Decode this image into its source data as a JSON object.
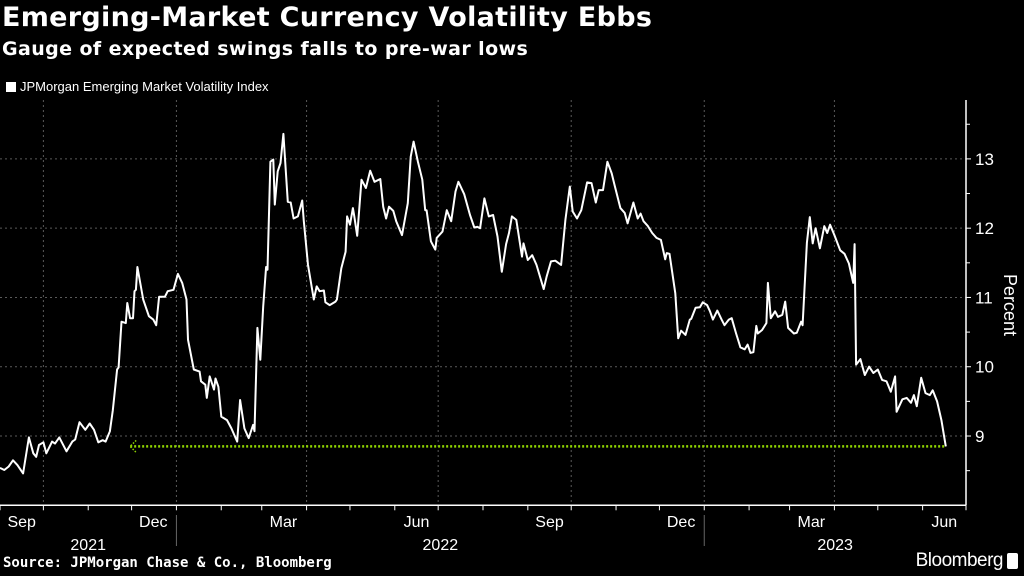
{
  "header": {
    "title": "Emerging-Market Currency Volatility Ebbs",
    "subtitle": "Gauge of expected swings falls to pre-war lows"
  },
  "footer": {
    "source": "Source: JPMorgan Chase & Co., Bloomberg",
    "logo": "Bloomberg"
  },
  "colors": {
    "background": "#000000",
    "series": "#ffffff",
    "reference_line": "#8fd400",
    "grid": "#555555"
  },
  "chart_data": {
    "type": "line",
    "title": "Emerging-Market Currency Volatility Ebbs",
    "subtitle": "Gauge of expected swings falls to pre-war lows",
    "ylabel": "Percent",
    "xlabel": "",
    "ylim": [
      8,
      13.85
    ],
    "xlim": [
      "2021-09-01",
      "2023-07-01"
    ],
    "grid": true,
    "legend": "top-left",
    "y_axis_side": "right",
    "y_ticks": [
      "9",
      "10",
      "11",
      "12",
      "13"
    ],
    "x_ticks": [
      {
        "label": "Sep",
        "date": "2021-09-16"
      },
      {
        "label": "Dec",
        "date": "2021-12-16"
      },
      {
        "label": "Mar",
        "date": "2022-03-16"
      },
      {
        "label": "Jun",
        "date": "2022-06-16"
      },
      {
        "label": "Sep",
        "date": "2022-09-16"
      },
      {
        "label": "Dec",
        "date": "2022-12-16"
      },
      {
        "label": "Mar",
        "date": "2023-03-16"
      },
      {
        "label": "Jun",
        "date": "2023-06-16"
      }
    ],
    "year_labels": [
      {
        "label": "2021",
        "from": "2021-09-01",
        "to": "2022-01-01"
      },
      {
        "label": "2022",
        "from": "2022-01-01",
        "to": "2023-01-01"
      },
      {
        "label": "2023",
        "from": "2023-01-01",
        "to": "2023-07-01"
      }
    ],
    "reference_line": {
      "value": 8.85,
      "from": "2021-11-30",
      "to": "2023-06-17",
      "style": "dotted-arrow-left"
    },
    "series": [
      {
        "name": "JPMorgan Emerging Market Volatility Index",
        "points": [
          [
            "2021-09-01",
            8.54
          ],
          [
            "2021-09-04",
            8.51
          ],
          [
            "2021-09-07",
            8.56
          ],
          [
            "2021-09-10",
            8.65
          ],
          [
            "2021-09-13",
            8.58
          ],
          [
            "2021-09-17",
            8.46
          ],
          [
            "2021-09-21",
            8.98
          ],
          [
            "2021-09-24",
            8.75
          ],
          [
            "2021-09-26",
            8.7
          ],
          [
            "2021-09-28",
            8.87
          ],
          [
            "2021-10-01",
            8.91
          ],
          [
            "2021-10-03",
            8.75
          ],
          [
            "2021-10-07",
            8.92
          ],
          [
            "2021-10-09",
            8.89
          ],
          [
            "2021-10-12",
            8.98
          ],
          [
            "2021-10-17",
            8.78
          ],
          [
            "2021-10-21",
            8.92
          ],
          [
            "2021-10-23",
            8.95
          ],
          [
            "2021-10-26",
            9.2
          ],
          [
            "2021-10-30",
            9.09
          ],
          [
            "2021-11-02",
            9.18
          ],
          [
            "2021-11-05",
            9.09
          ],
          [
            "2021-11-08",
            8.91
          ],
          [
            "2021-11-11",
            8.94
          ],
          [
            "2021-11-13",
            8.92
          ],
          [
            "2021-11-16",
            9.07
          ],
          [
            "2021-11-18",
            9.37
          ],
          [
            "2021-11-21",
            9.96
          ],
          [
            "2021-11-22",
            9.99
          ],
          [
            "2021-11-24",
            10.65
          ],
          [
            "2021-11-27",
            10.63
          ],
          [
            "2021-11-28",
            10.92
          ],
          [
            "2021-11-30",
            10.7
          ],
          [
            "2021-12-02",
            10.7
          ],
          [
            "2021-12-03",
            11.09
          ],
          [
            "2021-12-04",
            11.11
          ],
          [
            "2021-12-05",
            11.44
          ],
          [
            "2021-12-09",
            10.97
          ],
          [
            "2021-12-13",
            10.73
          ],
          [
            "2021-12-16",
            10.68
          ],
          [
            "2021-12-18",
            10.6
          ],
          [
            "2021-12-20",
            11.01
          ],
          [
            "2021-12-24",
            11.01
          ],
          [
            "2021-12-26",
            11.09
          ],
          [
            "2021-12-30",
            11.11
          ],
          [
            "2022-01-02",
            11.34
          ],
          [
            "2022-01-05",
            11.21
          ],
          [
            "2022-01-08",
            10.97
          ],
          [
            "2022-01-09",
            10.39
          ],
          [
            "2022-01-13",
            9.96
          ],
          [
            "2022-01-17",
            9.93
          ],
          [
            "2022-01-18",
            9.79
          ],
          [
            "2022-01-21",
            9.74
          ],
          [
            "2022-01-22",
            9.55
          ],
          [
            "2022-01-24",
            9.86
          ],
          [
            "2022-01-27",
            9.67
          ],
          [
            "2022-01-28",
            9.83
          ],
          [
            "2022-01-30",
            9.71
          ],
          [
            "2022-02-01",
            9.28
          ],
          [
            "2022-02-05",
            9.23
          ],
          [
            "2022-02-08",
            9.11
          ],
          [
            "2022-02-12",
            8.92
          ],
          [
            "2022-02-14",
            9.52
          ],
          [
            "2022-02-17",
            9.11
          ],
          [
            "2022-02-20",
            8.97
          ],
          [
            "2022-02-23",
            9.16
          ],
          [
            "2022-02-24",
            9.07
          ],
          [
            "2022-02-26",
            10.56
          ],
          [
            "2022-02-28",
            10.1
          ],
          [
            "2022-03-02",
            10.87
          ],
          [
            "2022-03-04",
            11.44
          ],
          [
            "2022-03-05",
            11.4
          ],
          [
            "2022-03-07",
            12.96
          ],
          [
            "2022-03-09",
            12.99
          ],
          [
            "2022-03-10",
            12.34
          ],
          [
            "2022-03-12",
            12.82
          ],
          [
            "2022-03-14",
            12.94
          ],
          [
            "2022-03-16",
            13.36
          ],
          [
            "2022-03-19",
            12.38
          ],
          [
            "2022-03-21",
            12.37
          ],
          [
            "2022-03-23",
            12.14
          ],
          [
            "2022-03-26",
            12.17
          ],
          [
            "2022-03-29",
            12.4
          ],
          [
            "2022-03-30",
            12.12
          ],
          [
            "2022-04-02",
            11.47
          ],
          [
            "2022-04-06",
            10.97
          ],
          [
            "2022-04-08",
            11.16
          ],
          [
            "2022-04-10",
            11.09
          ],
          [
            "2022-04-13",
            11.1
          ],
          [
            "2022-04-14",
            10.93
          ],
          [
            "2022-04-17",
            10.89
          ],
          [
            "2022-04-21",
            10.94
          ],
          [
            "2022-04-22",
            10.97
          ],
          [
            "2022-04-25",
            11.42
          ],
          [
            "2022-04-28",
            11.66
          ],
          [
            "2022-04-29",
            12.17
          ],
          [
            "2022-05-01",
            12.05
          ],
          [
            "2022-05-03",
            12.29
          ],
          [
            "2022-05-04",
            12.17
          ],
          [
            "2022-05-06",
            11.89
          ],
          [
            "2022-05-09",
            12.7
          ],
          [
            "2022-05-12",
            12.58
          ],
          [
            "2022-05-15",
            12.83
          ],
          [
            "2022-05-18",
            12.67
          ],
          [
            "2022-05-22",
            12.71
          ],
          [
            "2022-05-24",
            12.31
          ],
          [
            "2022-05-26",
            12.14
          ],
          [
            "2022-05-28",
            12.31
          ],
          [
            "2022-05-31",
            12.25
          ],
          [
            "2022-06-02",
            12.1
          ],
          [
            "2022-06-06",
            11.9
          ],
          [
            "2022-06-10",
            12.36
          ],
          [
            "2022-06-12",
            13.03
          ],
          [
            "2022-06-14",
            13.25
          ],
          [
            "2022-06-17",
            12.96
          ],
          [
            "2022-06-20",
            12.7
          ],
          [
            "2022-06-22",
            12.26
          ],
          [
            "2022-06-23",
            12.26
          ],
          [
            "2022-06-26",
            11.81
          ],
          [
            "2022-06-29",
            11.69
          ],
          [
            "2022-06-30",
            11.86
          ],
          [
            "2022-07-04",
            11.95
          ],
          [
            "2022-07-07",
            12.26
          ],
          [
            "2022-07-10",
            12.1
          ],
          [
            "2022-07-13",
            12.53
          ],
          [
            "2022-07-15",
            12.67
          ],
          [
            "2022-07-19",
            12.49
          ],
          [
            "2022-07-23",
            12.19
          ],
          [
            "2022-07-26",
            12.01
          ],
          [
            "2022-07-28",
            12.02
          ],
          [
            "2022-07-30",
            12.0
          ],
          [
            "2022-08-02",
            12.43
          ],
          [
            "2022-08-05",
            12.17
          ],
          [
            "2022-08-08",
            12.19
          ],
          [
            "2022-08-11",
            11.88
          ],
          [
            "2022-08-14",
            11.37
          ],
          [
            "2022-08-17",
            11.77
          ],
          [
            "2022-08-19",
            11.93
          ],
          [
            "2022-08-21",
            12.17
          ],
          [
            "2022-08-24",
            12.12
          ],
          [
            "2022-08-28",
            11.59
          ],
          [
            "2022-08-29",
            11.78
          ],
          [
            "2022-09-01",
            11.54
          ],
          [
            "2022-09-04",
            11.61
          ],
          [
            "2022-09-07",
            11.47
          ],
          [
            "2022-09-09",
            11.33
          ],
          [
            "2022-09-12",
            11.12
          ],
          [
            "2022-09-14",
            11.3
          ],
          [
            "2022-09-17",
            11.52
          ],
          [
            "2022-09-20",
            11.53
          ],
          [
            "2022-09-24",
            11.47
          ],
          [
            "2022-09-27",
            12.12
          ],
          [
            "2022-09-30",
            12.6
          ],
          [
            "2022-10-02",
            12.24
          ],
          [
            "2022-10-05",
            12.14
          ],
          [
            "2022-10-08",
            12.26
          ],
          [
            "2022-10-12",
            12.66
          ],
          [
            "2022-10-15",
            12.65
          ],
          [
            "2022-10-18",
            12.37
          ],
          [
            "2022-10-20",
            12.55
          ],
          [
            "2022-10-23",
            12.55
          ],
          [
            "2022-10-26",
            12.96
          ],
          [
            "2022-10-29",
            12.79
          ],
          [
            "2022-10-31",
            12.62
          ],
          [
            "2022-11-04",
            12.29
          ],
          [
            "2022-11-07",
            12.22
          ],
          [
            "2022-11-09",
            12.07
          ],
          [
            "2022-11-13",
            12.37
          ],
          [
            "2022-11-16",
            12.14
          ],
          [
            "2022-11-18",
            12.21
          ],
          [
            "2022-11-20",
            12.1
          ],
          [
            "2022-11-23",
            12.03
          ],
          [
            "2022-11-26",
            11.93
          ],
          [
            "2022-11-29",
            11.86
          ],
          [
            "2022-12-02",
            11.83
          ],
          [
            "2022-12-05",
            11.55
          ],
          [
            "2022-12-06",
            11.64
          ],
          [
            "2022-12-08",
            11.63
          ],
          [
            "2022-12-12",
            11.06
          ],
          [
            "2022-12-14",
            10.41
          ],
          [
            "2022-12-16",
            10.52
          ],
          [
            "2022-12-19",
            10.46
          ],
          [
            "2022-12-22",
            10.68
          ],
          [
            "2022-12-23",
            10.69
          ],
          [
            "2022-12-26",
            10.85
          ],
          [
            "2022-12-29",
            10.86
          ],
          [
            "2022-12-31",
            10.93
          ],
          [
            "2023-01-03",
            10.89
          ],
          [
            "2023-01-05",
            10.8
          ],
          [
            "2023-01-07",
            10.68
          ],
          [
            "2023-01-10",
            10.81
          ],
          [
            "2023-01-13",
            10.68
          ],
          [
            "2023-01-15",
            10.6
          ],
          [
            "2023-01-18",
            10.68
          ],
          [
            "2023-01-20",
            10.7
          ],
          [
            "2023-01-23",
            10.48
          ],
          [
            "2023-01-26",
            10.28
          ],
          [
            "2023-01-29",
            10.25
          ],
          [
            "2023-01-31",
            10.32
          ],
          [
            "2023-02-02",
            10.2
          ],
          [
            "2023-02-04",
            10.21
          ],
          [
            "2023-02-06",
            10.59
          ],
          [
            "2023-02-07",
            10.48
          ],
          [
            "2023-02-10",
            10.53
          ],
          [
            "2023-02-13",
            10.63
          ],
          [
            "2023-02-14",
            11.21
          ],
          [
            "2023-02-16",
            10.7
          ],
          [
            "2023-02-19",
            10.8
          ],
          [
            "2023-02-21",
            10.72
          ],
          [
            "2023-02-24",
            10.75
          ],
          [
            "2023-02-26",
            10.94
          ],
          [
            "2023-02-28",
            10.56
          ],
          [
            "2023-03-04",
            10.48
          ],
          [
            "2023-03-06",
            10.49
          ],
          [
            "2023-03-09",
            10.65
          ],
          [
            "2023-03-10",
            10.6
          ],
          [
            "2023-03-13",
            11.79
          ],
          [
            "2023-03-15",
            12.16
          ],
          [
            "2023-03-17",
            11.78
          ],
          [
            "2023-03-19",
            12.0
          ],
          [
            "2023-03-22",
            11.71
          ],
          [
            "2023-03-25",
            12.03
          ],
          [
            "2023-03-27",
            11.93
          ],
          [
            "2023-03-29",
            12.05
          ],
          [
            "2023-04-01",
            11.9
          ],
          [
            "2023-04-05",
            11.68
          ],
          [
            "2023-04-08",
            11.63
          ],
          [
            "2023-04-11",
            11.49
          ],
          [
            "2023-04-14",
            11.21
          ],
          [
            "2023-04-15",
            11.77
          ],
          [
            "2023-04-16",
            10.03
          ],
          [
            "2023-04-19",
            10.11
          ],
          [
            "2023-04-22",
            9.88
          ],
          [
            "2023-04-25",
            10.0
          ],
          [
            "2023-04-28",
            9.91
          ],
          [
            "2023-05-01",
            9.96
          ],
          [
            "2023-05-04",
            9.81
          ],
          [
            "2023-05-07",
            9.79
          ],
          [
            "2023-05-10",
            9.64
          ],
          [
            "2023-05-13",
            9.86
          ],
          [
            "2023-05-14",
            9.35
          ],
          [
            "2023-05-18",
            9.53
          ],
          [
            "2023-05-21",
            9.55
          ],
          [
            "2023-05-24",
            9.48
          ],
          [
            "2023-05-26",
            9.59
          ],
          [
            "2023-05-28",
            9.43
          ],
          [
            "2023-05-31",
            9.84
          ],
          [
            "2023-06-03",
            9.62
          ],
          [
            "2023-06-06",
            9.59
          ],
          [
            "2023-06-08",
            9.66
          ],
          [
            "2023-06-11",
            9.5
          ],
          [
            "2023-06-14",
            9.23
          ],
          [
            "2023-06-17",
            8.85
          ]
        ]
      }
    ]
  }
}
